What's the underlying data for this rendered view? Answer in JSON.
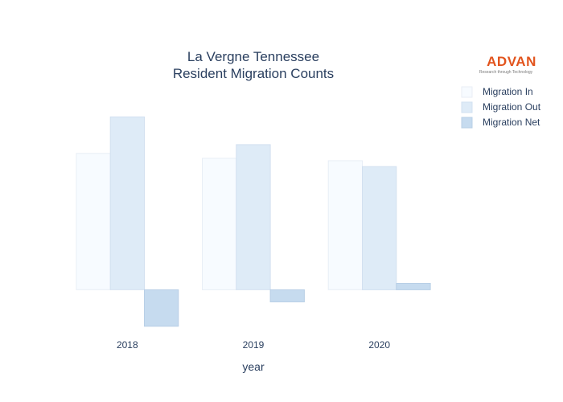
{
  "title_lines": [
    "La Vergne Tennessee",
    "Resident Migration Counts"
  ],
  "logo": {
    "name": "ADVAN",
    "tagline": "Research through Technology",
    "color": "#e2541d"
  },
  "chart_data": {
    "type": "bar",
    "title": "La Vergne Tennessee Resident Migration Counts",
    "xlabel": "year",
    "ylabel": "",
    "categories": [
      "2018",
      "2019",
      "2020"
    ],
    "series": [
      {
        "name": "Migration In",
        "values": [
          2800,
          2700,
          2650
        ],
        "color": "#f7fbff",
        "stroke": "#e8eef6"
      },
      {
        "name": "Migration Out",
        "values": [
          3550,
          2980,
          2530
        ],
        "color": "#deebf7",
        "stroke": "#d2e0f0"
      },
      {
        "name": "Migration Net",
        "values": [
          -750,
          -250,
          130
        ],
        "color": "#c6dbef",
        "stroke": "#b8cfe6"
      }
    ],
    "ylim": [
      -820,
      4300
    ],
    "grid": false,
    "legend_position": "top-right"
  }
}
